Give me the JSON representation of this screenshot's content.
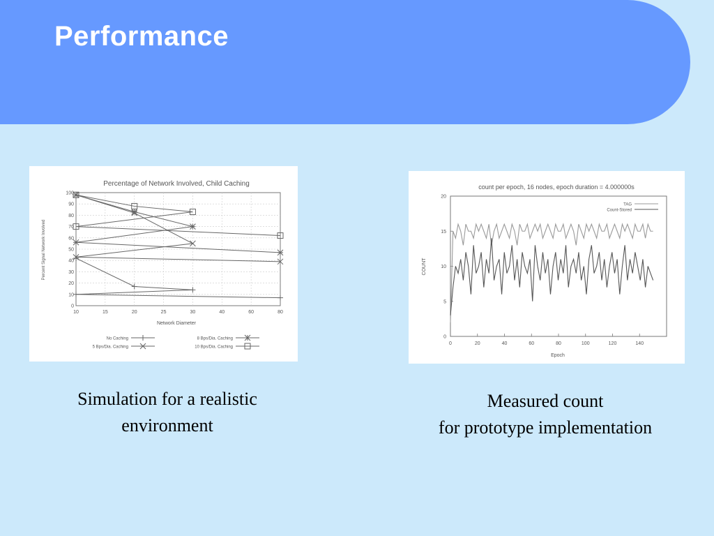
{
  "slide": {
    "title": "Performance"
  },
  "captions": {
    "left": {
      "line1": "Simulation for a realistic",
      "line2": "environment"
    },
    "right": {
      "line1": "Measured count",
      "line2": "for prototype implementation"
    }
  },
  "colors": {
    "header": "#6699ff",
    "background": "#cce9fb",
    "plot_line": "#666666"
  },
  "chart_data": [
    {
      "type": "line",
      "title": "Percentage of Network Involved, Child Caching",
      "xlabel": "Network Diameter",
      "ylabel": "Percent Signal Network Involved",
      "xlim": [
        10,
        80
      ],
      "ylim": [
        0,
        100
      ],
      "x_ticks": [
        "10",
        "15",
        "20",
        "25",
        "30",
        "40",
        "60",
        "80"
      ],
      "y_ticks": [
        "0",
        "10",
        "20",
        "30",
        "40",
        "50",
        "60",
        "70",
        "80",
        "90",
        "100"
      ],
      "grid": true,
      "legend_position": "bottom",
      "x": [
        10,
        20,
        30,
        50,
        80
      ],
      "series": [
        {
          "name": "No Caching",
          "marker": "+",
          "values": [
            42,
            17,
            14,
            10,
            7
          ]
        },
        {
          "name": "5 Bps/Dia. Caching",
          "marker": "x",
          "values": [
            98,
            82,
            55,
            43,
            39
          ]
        },
        {
          "name": "8 Bps/Dia. Caching",
          "marker": "*",
          "values": [
            98,
            83,
            70,
            56,
            47
          ]
        },
        {
          "name": "10 Bps/Dia. Caching",
          "marker": "square",
          "values": [
            98,
            88,
            83,
            70,
            62
          ]
        }
      ]
    },
    {
      "type": "line",
      "title": "count per epoch, 16 nodes, epoch duration = 4.000000s",
      "xlabel": "Epoch",
      "ylabel": "COUNT",
      "xlim": [
        0,
        160
      ],
      "ylim": [
        0,
        20
      ],
      "x_ticks": [
        "0",
        "20",
        "40",
        "60",
        "80",
        "100",
        "120",
        "140"
      ],
      "y_ticks": [
        "0",
        "5",
        "10",
        "15",
        "20"
      ],
      "grid": false,
      "legend_position": "top-right",
      "series": [
        {
          "name": "TAG",
          "values": [
            2,
            15,
            14,
            16,
            15,
            13,
            16,
            15,
            15,
            14,
            16,
            15,
            16,
            15,
            14,
            16,
            13,
            15,
            16,
            14,
            15,
            16,
            15,
            14,
            16,
            15,
            13,
            16,
            15,
            15,
            16,
            14,
            15,
            16,
            15,
            16,
            14,
            15,
            16,
            15,
            14,
            16,
            15,
            15,
            16,
            14,
            15,
            16,
            15,
            13,
            16,
            15,
            14,
            16,
            15,
            16,
            15,
            14,
            16,
            15,
            15,
            16,
            14,
            15,
            16,
            15,
            14,
            16,
            15,
            16,
            15,
            14,
            16,
            15,
            15,
            16,
            14,
            16,
            15,
            15
          ]
        },
        {
          "name": "Count-Stored",
          "values": [
            3,
            7,
            10,
            9,
            11,
            8,
            12,
            10,
            6,
            13,
            9,
            10,
            12,
            7,
            11,
            9,
            14,
            8,
            10,
            11,
            6,
            12,
            9,
            10,
            13,
            8,
            11,
            7,
            12,
            10,
            9,
            11,
            5,
            13,
            10,
            8,
            12,
            9,
            11,
            6,
            10,
            12,
            8,
            11,
            9,
            13,
            7,
            10,
            11,
            9,
            12,
            8,
            10,
            6,
            11,
            13,
            9,
            10,
            12,
            8,
            11,
            7,
            10,
            12,
            9,
            11,
            6,
            10,
            13,
            8,
            11,
            9,
            12,
            10,
            8,
            11,
            7,
            10,
            9,
            8
          ]
        }
      ]
    }
  ]
}
